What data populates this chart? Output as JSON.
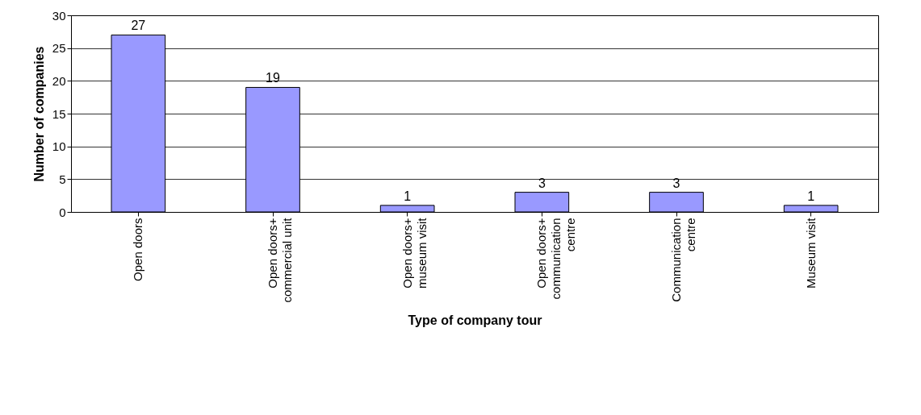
{
  "chart_data": {
    "type": "bar",
    "xlabel": "Type of company tour",
    "ylabel": "Number of companies",
    "categories": [
      "Open doors",
      "Open doors+\ncommercial unit",
      "Open doors+\nmuseum visit",
      "Open doors+\ncommunication\ncentre",
      "Communication\ncentre",
      "Museum visit"
    ],
    "values": [
      27,
      19,
      1,
      3,
      3,
      1
    ],
    "color": "#9999ff",
    "ylim": [
      0,
      30
    ],
    "yticks": [
      0,
      5,
      10,
      15,
      20,
      25,
      30
    ],
    "grid": "y",
    "data_labels": true,
    "legend": false
  }
}
